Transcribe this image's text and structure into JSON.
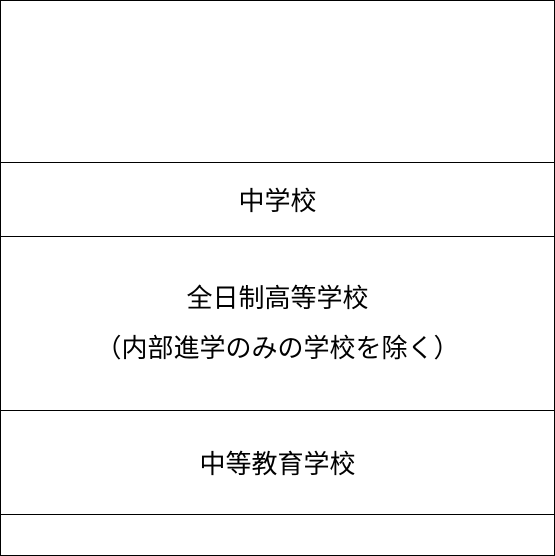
{
  "table": {
    "rows": [
      {
        "text": "",
        "class": "row-empty"
      },
      {
        "text": "中学校",
        "class": "row-1"
      },
      {
        "text": "全日制高等学校\n（内部進学のみの学校を除く）",
        "class": "row-2",
        "multiline": true
      },
      {
        "text": "中等教育学校",
        "class": "row-3"
      },
      {
        "text": "",
        "class": "row-4"
      }
    ],
    "border_color": "#000000",
    "text_color": "#000000",
    "background_color": "#ffffff",
    "font_size": 26
  }
}
